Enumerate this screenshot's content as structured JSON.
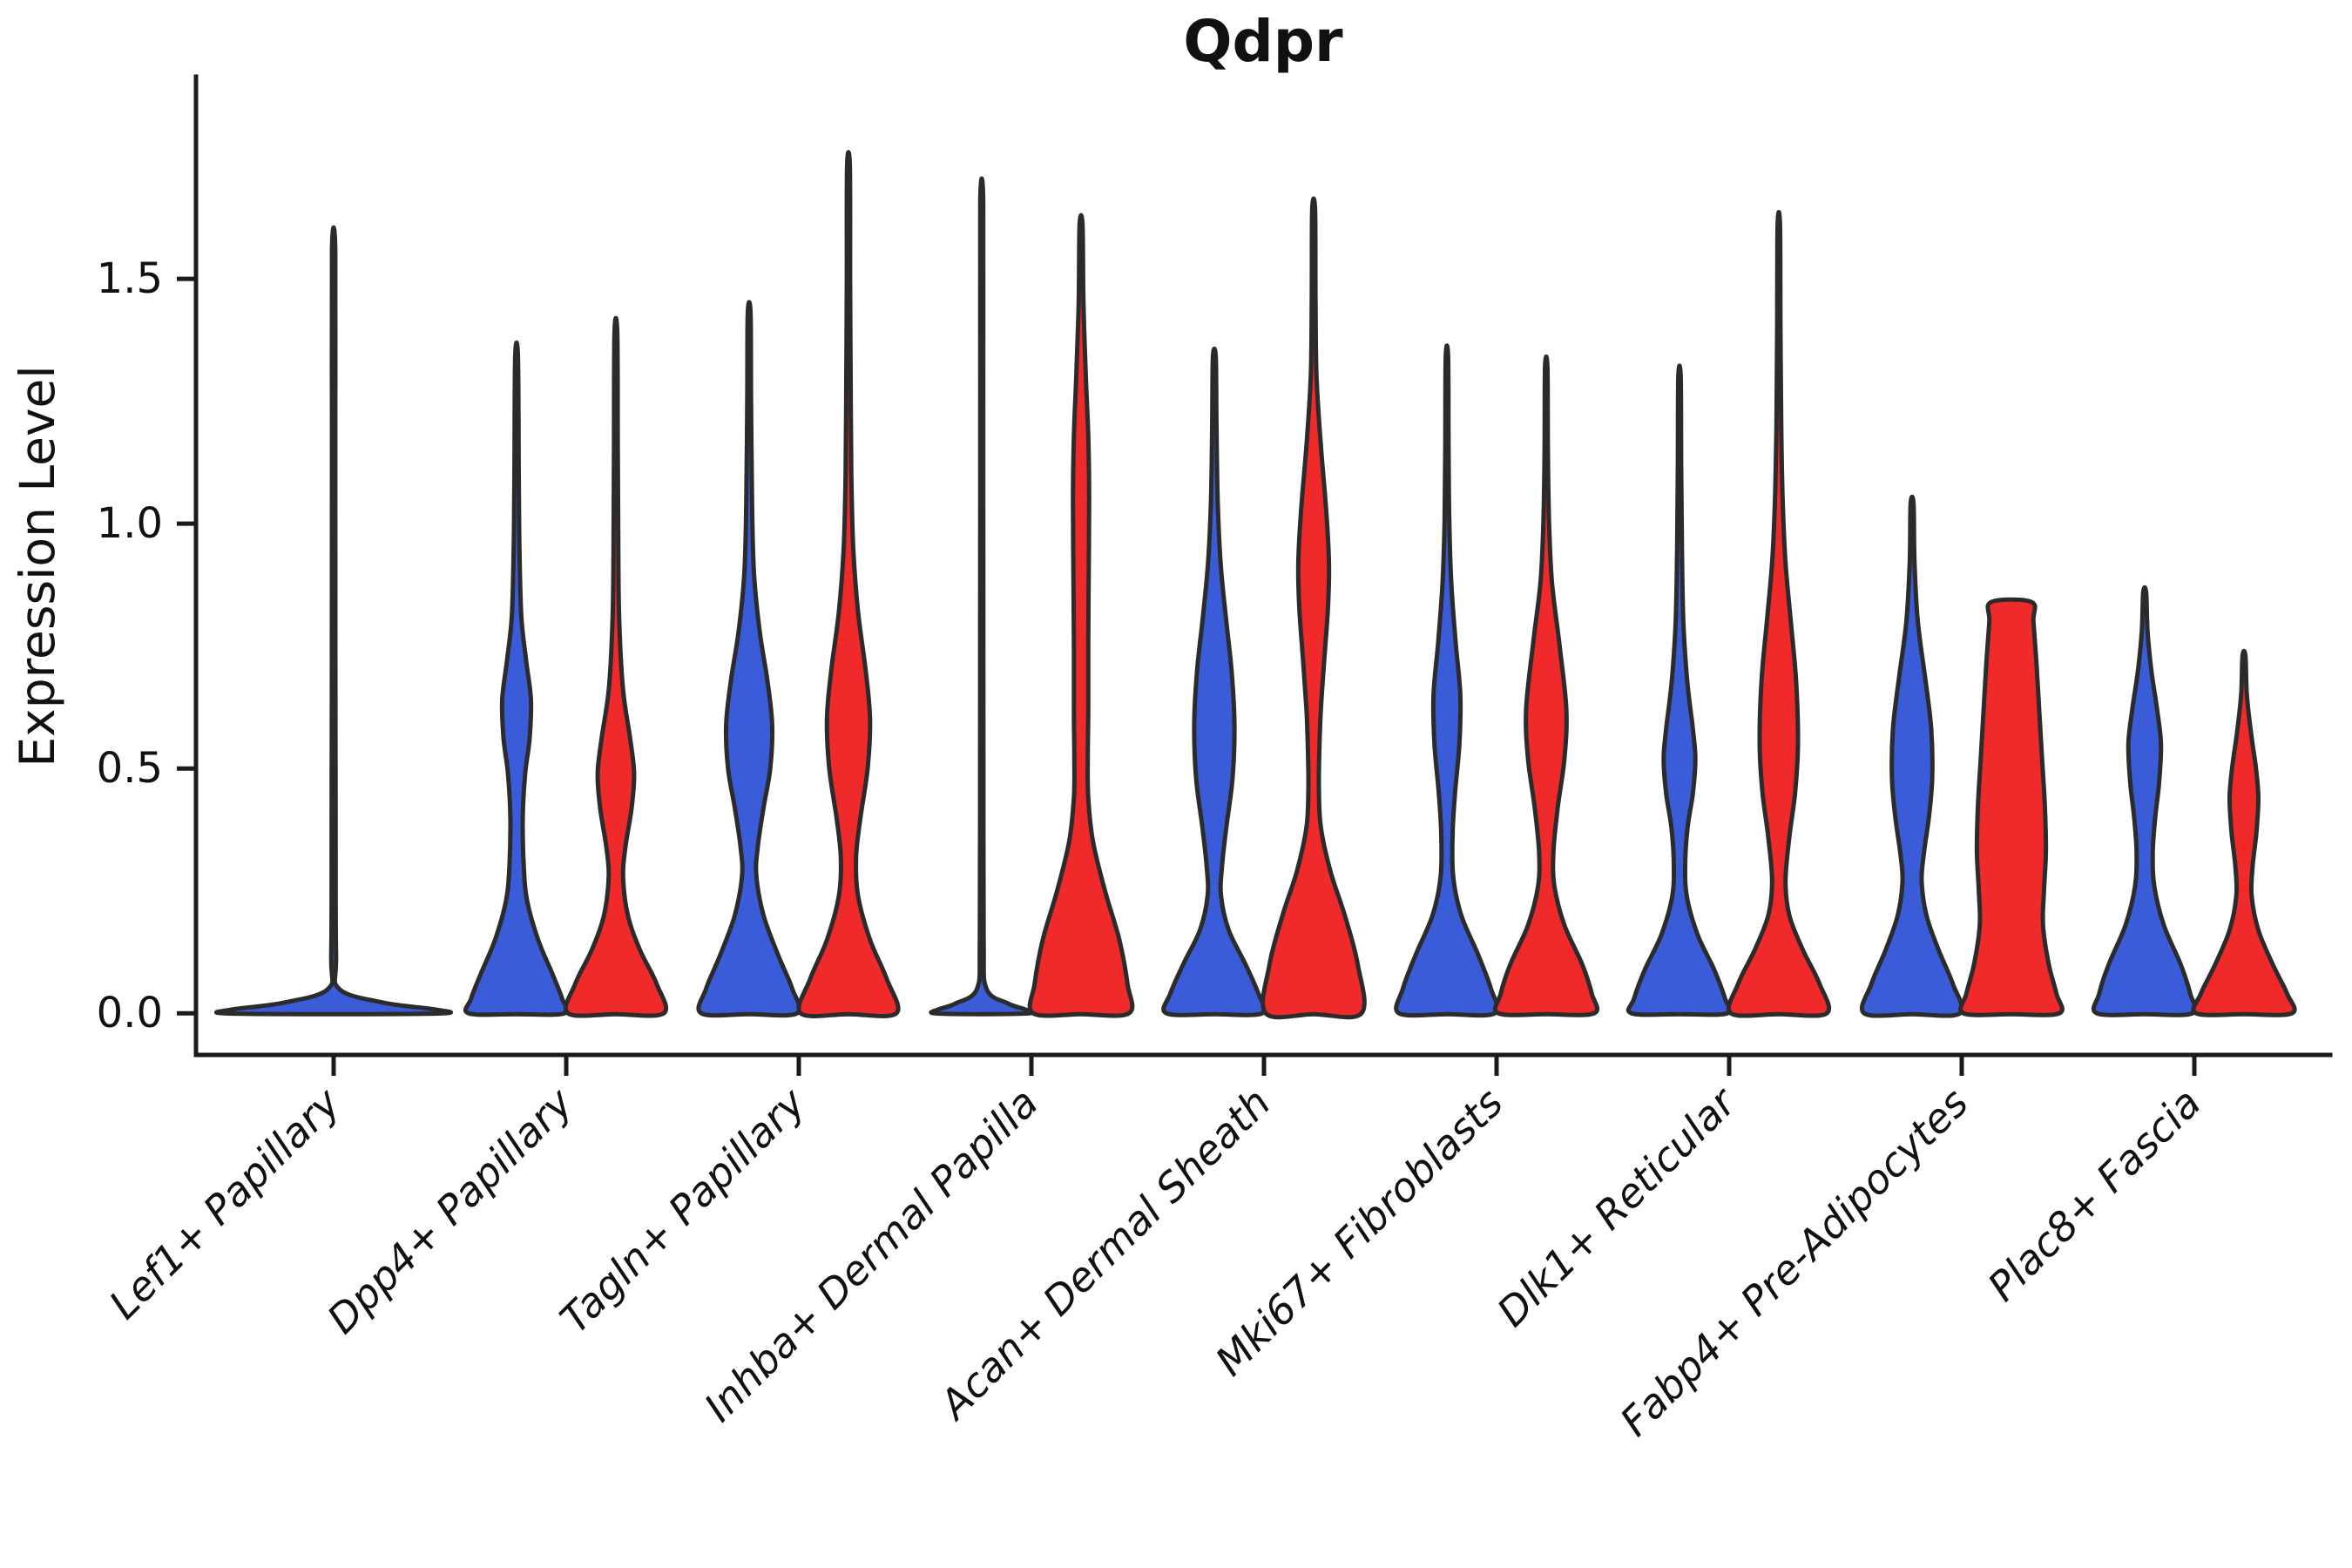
{
  "chart_data": {
    "type": "violin",
    "title": "Qdpr",
    "xlabel": "",
    "ylabel": "Expression Level",
    "ylim": [
      -0.085,
      1.913
    ],
    "grid": false,
    "legend": "none",
    "yticks": [
      {
        "value": 0.0,
        "label": "0.0"
      },
      {
        "value": 0.5,
        "label": "0.5"
      },
      {
        "value": 1.0,
        "label": "1.0"
      },
      {
        "value": 1.5,
        "label": "1.5"
      }
    ],
    "categories": [
      "Lef1+ Papillary",
      "Dpp4+ Papillary",
      "Tagln+ Papillary",
      "Inhba+ Dermal Papilla",
      "Acan+ Dermal Sheath",
      "Mki67+ Fibroblasts",
      "Dlk1+ Reticular",
      "Fabp4+ Pre-Adipocytes",
      "Plac8+ Fascia"
    ],
    "colors": {
      "blue_fill": "#3B5CD9",
      "red_fill": "#F02A2B",
      "outline": "#2B2B2B",
      "axis": "#1A1A1A",
      "background": "#FFFFFF"
    },
    "violins": [
      {
        "category": "Lef1+ Papillary",
        "blue": {
          "max": 1.56,
          "span": "full",
          "profile": [
            [
              1.56,
              0.015
            ],
            [
              1.2,
              0.015
            ],
            [
              0.8,
              0.016
            ],
            [
              0.4,
              0.018
            ],
            [
              0.12,
              0.022
            ],
            [
              0.05,
              0.05
            ],
            [
              0.022,
              0.45
            ],
            [
              0.008,
              0.92
            ],
            [
              0,
              1
            ]
          ]
        },
        "red": null
      },
      {
        "category": "Dpp4+ Papillary",
        "blue": {
          "max": 1.34,
          "span": "half",
          "profile": [
            [
              1.34,
              0.03
            ],
            [
              1.1,
              0.045
            ],
            [
              0.95,
              0.06
            ],
            [
              0.81,
              0.1
            ],
            [
              0.72,
              0.2
            ],
            [
              0.64,
              0.3
            ],
            [
              0.56,
              0.27
            ],
            [
              0.49,
              0.18
            ],
            [
              0.4,
              0.13
            ],
            [
              0.3,
              0.15
            ],
            [
              0.23,
              0.22
            ],
            [
              0.15,
              0.45
            ],
            [
              0.08,
              0.75
            ],
            [
              0.03,
              0.95
            ],
            [
              0,
              1
            ]
          ]
        },
        "red": {
          "max": 1.39,
          "span": "half",
          "profile": [
            [
              1.39,
              0.03
            ],
            [
              1.15,
              0.04
            ],
            [
              0.95,
              0.05
            ],
            [
              0.8,
              0.07
            ],
            [
              0.66,
              0.15
            ],
            [
              0.56,
              0.3
            ],
            [
              0.49,
              0.38
            ],
            [
              0.42,
              0.33
            ],
            [
              0.34,
              0.2
            ],
            [
              0.28,
              0.15
            ],
            [
              0.2,
              0.25
            ],
            [
              0.13,
              0.5
            ],
            [
              0.06,
              0.85
            ],
            [
              0,
              1
            ]
          ]
        }
      },
      {
        "category": "Tagln+ Papillary",
        "blue": {
          "max": 1.43,
          "span": "half",
          "profile": [
            [
              1.43,
              0.03
            ],
            [
              1.25,
              0.04
            ],
            [
              1.05,
              0.06
            ],
            [
              0.9,
              0.1
            ],
            [
              0.78,
              0.22
            ],
            [
              0.68,
              0.38
            ],
            [
              0.59,
              0.48
            ],
            [
              0.5,
              0.44
            ],
            [
              0.42,
              0.3
            ],
            [
              0.34,
              0.18
            ],
            [
              0.28,
              0.15
            ],
            [
              0.2,
              0.3
            ],
            [
              0.12,
              0.6
            ],
            [
              0.05,
              0.9
            ],
            [
              0,
              1
            ]
          ]
        },
        "red": {
          "max": 1.73,
          "span": "half",
          "profile": [
            [
              1.73,
              0.03
            ],
            [
              1.5,
              0.035
            ],
            [
              1.3,
              0.045
            ],
            [
              1.1,
              0.06
            ],
            [
              0.95,
              0.1
            ],
            [
              0.82,
              0.2
            ],
            [
              0.7,
              0.36
            ],
            [
              0.6,
              0.45
            ],
            [
              0.5,
              0.4
            ],
            [
              0.4,
              0.25
            ],
            [
              0.32,
              0.16
            ],
            [
              0.24,
              0.2
            ],
            [
              0.15,
              0.45
            ],
            [
              0.07,
              0.8
            ],
            [
              0,
              1
            ]
          ]
        }
      },
      {
        "category": "Inhba+ Dermal Papilla",
        "blue": {
          "max": 1.66,
          "span": "half",
          "profile": [
            [
              1.66,
              0.03
            ],
            [
              1.3,
              0.03
            ],
            [
              0.9,
              0.032
            ],
            [
              0.5,
              0.035
            ],
            [
              0.15,
              0.04
            ],
            [
              0.05,
              0.1
            ],
            [
              0.02,
              0.55
            ],
            [
              0.008,
              0.9
            ],
            [
              0,
              1
            ]
          ]
        },
        "red": {
          "max": 1.61,
          "span": "half",
          "profile": [
            [
              1.61,
              0.03
            ],
            [
              1.45,
              0.05
            ],
            [
              1.3,
              0.1
            ],
            [
              1.18,
              0.15
            ],
            [
              1.05,
              0.17
            ],
            [
              0.9,
              0.16
            ],
            [
              0.75,
              0.15
            ],
            [
              0.62,
              0.15
            ],
            [
              0.52,
              0.14
            ],
            [
              0.44,
              0.15
            ],
            [
              0.35,
              0.25
            ],
            [
              0.25,
              0.5
            ],
            [
              0.15,
              0.8
            ],
            [
              0.06,
              0.97
            ],
            [
              0,
              1
            ]
          ]
        }
      },
      {
        "category": "Acan+ Dermal Sheath",
        "blue": {
          "max": 1.34,
          "span": "half",
          "profile": [
            [
              1.34,
              0.03
            ],
            [
              1.2,
              0.045
            ],
            [
              1.05,
              0.07
            ],
            [
              0.92,
              0.13
            ],
            [
              0.8,
              0.25
            ],
            [
              0.7,
              0.36
            ],
            [
              0.59,
              0.42
            ],
            [
              0.48,
              0.38
            ],
            [
              0.38,
              0.25
            ],
            [
              0.3,
              0.16
            ],
            [
              0.24,
              0.14
            ],
            [
              0.17,
              0.3
            ],
            [
              0.1,
              0.65
            ],
            [
              0.04,
              0.92
            ],
            [
              0,
              1
            ]
          ]
        },
        "red": {
          "max": 1.64,
          "span": "half",
          "profile": [
            [
              1.64,
              0.03
            ],
            [
              1.45,
              0.04
            ],
            [
              1.3,
              0.06
            ],
            [
              1.16,
              0.15
            ],
            [
              1.03,
              0.26
            ],
            [
              0.92,
              0.32
            ],
            [
              0.83,
              0.3
            ],
            [
              0.72,
              0.22
            ],
            [
              0.62,
              0.15
            ],
            [
              0.54,
              0.12
            ],
            [
              0.46,
              0.11
            ],
            [
              0.38,
              0.15
            ],
            [
              0.29,
              0.35
            ],
            [
              0.2,
              0.65
            ],
            [
              0.1,
              0.92
            ],
            [
              0,
              1
            ]
          ]
        }
      },
      {
        "category": "Mki67+ Fibroblasts",
        "blue": {
          "max": 1.34,
          "span": "half",
          "profile": [
            [
              1.34,
              0.025
            ],
            [
              1.15,
              0.035
            ],
            [
              1.0,
              0.05
            ],
            [
              0.88,
              0.09
            ],
            [
              0.76,
              0.18
            ],
            [
              0.65,
              0.28
            ],
            [
              0.55,
              0.26
            ],
            [
              0.45,
              0.17
            ],
            [
              0.37,
              0.12
            ],
            [
              0.28,
              0.13
            ],
            [
              0.2,
              0.3
            ],
            [
              0.12,
              0.65
            ],
            [
              0.05,
              0.92
            ],
            [
              0,
              1
            ]
          ]
        },
        "red": {
          "max": 1.32,
          "span": "half",
          "profile": [
            [
              1.32,
              0.025
            ],
            [
              1.15,
              0.035
            ],
            [
              1.0,
              0.06
            ],
            [
              0.88,
              0.12
            ],
            [
              0.75,
              0.28
            ],
            [
              0.62,
              0.42
            ],
            [
              0.52,
              0.38
            ],
            [
              0.42,
              0.24
            ],
            [
              0.33,
              0.15
            ],
            [
              0.26,
              0.17
            ],
            [
              0.18,
              0.38
            ],
            [
              0.1,
              0.75
            ],
            [
              0.04,
              0.95
            ],
            [
              0,
              1
            ]
          ]
        }
      },
      {
        "category": "Dlk1+ Reticular",
        "blue": {
          "max": 1.3,
          "span": "half",
          "profile": [
            [
              1.3,
              0.025
            ],
            [
              1.12,
              0.035
            ],
            [
              0.95,
              0.05
            ],
            [
              0.8,
              0.08
            ],
            [
              0.68,
              0.16
            ],
            [
              0.58,
              0.28
            ],
            [
              0.52,
              0.33
            ],
            [
              0.45,
              0.28
            ],
            [
              0.38,
              0.17
            ],
            [
              0.31,
              0.12
            ],
            [
              0.24,
              0.15
            ],
            [
              0.16,
              0.38
            ],
            [
              0.09,
              0.72
            ],
            [
              0.03,
              0.95
            ],
            [
              0,
              1
            ]
          ]
        },
        "red": {
          "max": 1.61,
          "span": "half",
          "profile": [
            [
              1.61,
              0.025
            ],
            [
              1.4,
              0.035
            ],
            [
              1.2,
              0.05
            ],
            [
              1.05,
              0.08
            ],
            [
              0.92,
              0.14
            ],
            [
              0.8,
              0.25
            ],
            [
              0.68,
              0.36
            ],
            [
              0.55,
              0.4
            ],
            [
              0.45,
              0.34
            ],
            [
              0.36,
              0.22
            ],
            [
              0.27,
              0.14
            ],
            [
              0.2,
              0.22
            ],
            [
              0.13,
              0.5
            ],
            [
              0.06,
              0.85
            ],
            [
              0,
              1
            ]
          ]
        }
      },
      {
        "category": "Fabp4+ Pre-Adipocytes",
        "blue": {
          "max": 1.04,
          "span": "half",
          "profile": [
            [
              1.04,
              0.03
            ],
            [
              0.92,
              0.05
            ],
            [
              0.8,
              0.12
            ],
            [
              0.68,
              0.28
            ],
            [
              0.58,
              0.4
            ],
            [
              0.48,
              0.42
            ],
            [
              0.4,
              0.35
            ],
            [
              0.33,
              0.25
            ],
            [
              0.27,
              0.2
            ],
            [
              0.2,
              0.3
            ],
            [
              0.13,
              0.55
            ],
            [
              0.06,
              0.85
            ],
            [
              0,
              1
            ]
          ]
        },
        "red": {
          "max": 0.84,
          "span": "half",
          "profile": [
            [
              0.84,
              0.42
            ],
            [
              0.8,
              0.46
            ],
            [
              0.72,
              0.52
            ],
            [
              0.62,
              0.58
            ],
            [
              0.52,
              0.64
            ],
            [
              0.42,
              0.7
            ],
            [
              0.33,
              0.72
            ],
            [
              0.25,
              0.68
            ],
            [
              0.18,
              0.66
            ],
            [
              0.1,
              0.78
            ],
            [
              0.04,
              0.94
            ],
            [
              0,
              1
            ]
          ]
        }
      },
      {
        "category": "Plac8+ Fascia",
        "blue": {
          "max": 0.86,
          "span": "half",
          "profile": [
            [
              0.86,
              0.03
            ],
            [
              0.78,
              0.06
            ],
            [
              0.7,
              0.14
            ],
            [
              0.62,
              0.26
            ],
            [
              0.55,
              0.34
            ],
            [
              0.47,
              0.3
            ],
            [
              0.4,
              0.22
            ],
            [
              0.33,
              0.17
            ],
            [
              0.26,
              0.2
            ],
            [
              0.18,
              0.4
            ],
            [
              0.1,
              0.75
            ],
            [
              0.04,
              0.95
            ],
            [
              0,
              1
            ]
          ]
        },
        "red": {
          "max": 0.73,
          "span": "half",
          "profile": [
            [
              0.73,
              0.03
            ],
            [
              0.65,
              0.06
            ],
            [
              0.57,
              0.15
            ],
            [
              0.5,
              0.25
            ],
            [
              0.44,
              0.3
            ],
            [
              0.37,
              0.26
            ],
            [
              0.3,
              0.18
            ],
            [
              0.24,
              0.16
            ],
            [
              0.17,
              0.3
            ],
            [
              0.1,
              0.6
            ],
            [
              0.04,
              0.9
            ],
            [
              0,
              1
            ]
          ]
        }
      }
    ]
  }
}
